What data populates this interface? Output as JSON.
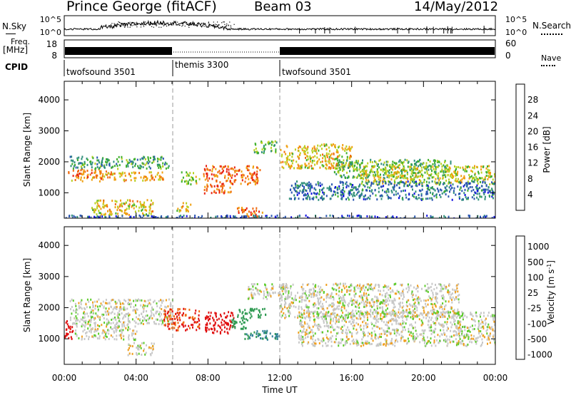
{
  "header": {
    "site": "Prince George (fitACF)",
    "beam": "Beam 03",
    "date": "14/May/2012"
  },
  "top_panels": {
    "nsky_label": "N.Sky",
    "nsearch_label": "N.Search",
    "noise_ticks": [
      "10^5",
      "10^0"
    ],
    "noise_ticks_right": [
      "10^5",
      "10^0"
    ],
    "freq_label": "Freq.",
    "freq_unit": "[MHz]",
    "freq_ticks": [
      "18",
      "8"
    ],
    "nave_ticks": [
      "60",
      "0"
    ],
    "nave_label": "Nave",
    "cpid_label": "CPID",
    "cpid_segments": [
      {
        "name": "twofsound 3501",
        "start_hour": 0,
        "end_hour": 6
      },
      {
        "name": "themis 3300",
        "start_hour": 6,
        "end_hour": 12
      },
      {
        "name": "twofsound 3501",
        "start_hour": 12,
        "end_hour": 24
      }
    ]
  },
  "chart_data": [
    {
      "type": "heatmap",
      "title": "",
      "xlabel": "Time UT",
      "ylabel": "Slant Range [km]",
      "x_ticks": [
        "00:00",
        "04:00",
        "08:00",
        "12:00",
        "16:00",
        "20:00",
        "00:00"
      ],
      "x_range_hours": [
        0,
        24
      ],
      "y_ticks": [
        1000,
        2000,
        3000,
        4000
      ],
      "ylim": [
        180,
        4600
      ],
      "colorbar": {
        "label": "Power [dB]",
        "ticks": [
          4,
          8,
          12,
          16,
          20,
          24,
          28
        ],
        "colors": [
          "#1010e0",
          "#2a56b0",
          "#2f8f7a",
          "#3fb02c",
          "#b8d020",
          "#f0a010",
          "#f06a10",
          "#e82010"
        ]
      },
      "regions": [
        {
          "x": [
            0.2,
            2.4
          ],
          "y": [
            1400,
            1800
          ],
          "value": 24
        },
        {
          "x": [
            2.4,
            5.5
          ],
          "y": [
            1400,
            1700
          ],
          "value": 22
        },
        {
          "x": [
            0.3,
            5.8
          ],
          "y": [
            1800,
            2200
          ],
          "value": 12
        },
        {
          "x": [
            1.5,
            5.0
          ],
          "y": [
            300,
            800
          ],
          "value": 20
        },
        {
          "x": [
            6.2,
            7.0
          ],
          "y": [
            400,
            700
          ],
          "value": 20
        },
        {
          "x": [
            6.5,
            7.5
          ],
          "y": [
            1300,
            1700
          ],
          "value": 16
        },
        {
          "x": [
            7.7,
            9.3
          ],
          "y": [
            1000,
            1900
          ],
          "value": 27
        },
        {
          "x": [
            9.3,
            10.9
          ],
          "y": [
            1300,
            1900
          ],
          "value": 26
        },
        {
          "x": [
            9.6,
            11.0
          ],
          "y": [
            250,
            550
          ],
          "value": 26
        },
        {
          "x": [
            10.5,
            11.8
          ],
          "y": [
            2300,
            2700
          ],
          "value": 14
        },
        {
          "x": [
            12.0,
            16.0
          ],
          "y": [
            1800,
            2600
          ],
          "value": 20
        },
        {
          "x": [
            15.0,
            21.5
          ],
          "y": [
            1500,
            2100
          ],
          "value": 14
        },
        {
          "x": [
            16.5,
            24.0
          ],
          "y": [
            1300,
            1900
          ],
          "value": 18
        },
        {
          "x": [
            12.5,
            24.0
          ],
          "y": [
            800,
            1400
          ],
          "value": 8
        },
        {
          "x": [
            0.0,
            24.0
          ],
          "y": [
            200,
            300
          ],
          "value": 6
        }
      ]
    },
    {
      "type": "heatmap",
      "title": "",
      "xlabel": "Time UT",
      "ylabel": "Slant Range [km]",
      "x_ticks": [
        "00:00",
        "04:00",
        "08:00",
        "12:00",
        "16:00",
        "20:00",
        "00:00"
      ],
      "x_range_hours": [
        0,
        24
      ],
      "y_ticks": [
        1000,
        2000,
        3000,
        4000
      ],
      "ylim": [
        180,
        4600
      ],
      "colorbar": {
        "label": "Velocity [m s^-1]",
        "ticks": [
          "1000",
          "500",
          "100",
          "25",
          "-25",
          "-100",
          "-500",
          "-1000"
        ],
        "colors": [
          "#1a1acc",
          "#2e7f95",
          "#2f9a52",
          "#5ccc2a",
          "#c8c8c8",
          "#f0a020",
          "#f06a10",
          "#e01010"
        ]
      },
      "regions": [
        {
          "x": [
            0.0,
            0.5
          ],
          "y": [
            1000,
            1600
          ],
          "value": -500
        },
        {
          "x": [
            0.3,
            6.0
          ],
          "y": [
            1500,
            2300
          ],
          "value": 0
        },
        {
          "x": [
            3.5,
            5.0
          ],
          "y": [
            500,
            900
          ],
          "value": 0
        },
        {
          "x": [
            5.5,
            7.5
          ],
          "y": [
            1300,
            2000
          ],
          "value": -300
        },
        {
          "x": [
            7.8,
            9.4
          ],
          "y": [
            1200,
            1900
          ],
          "value": -400
        },
        {
          "x": [
            9.3,
            10.2
          ],
          "y": [
            1300,
            1700
          ],
          "value": 100
        },
        {
          "x": [
            9.6,
            11.2
          ],
          "y": [
            1700,
            2000
          ],
          "value": 120
        },
        {
          "x": [
            10.0,
            12.0
          ],
          "y": [
            1000,
            1300
          ],
          "value": 300
        },
        {
          "x": [
            10.2,
            12.5
          ],
          "y": [
            2300,
            2800
          ],
          "value": 0
        },
        {
          "x": [
            12.0,
            22.0
          ],
          "y": [
            1700,
            2800
          ],
          "value": 0
        },
        {
          "x": [
            13.0,
            24.0
          ],
          "y": [
            800,
            1900
          ],
          "value": 0
        },
        {
          "x": [
            0.5,
            4.0
          ],
          "y": [
            1000,
            1500
          ],
          "value": 0
        }
      ]
    }
  ]
}
